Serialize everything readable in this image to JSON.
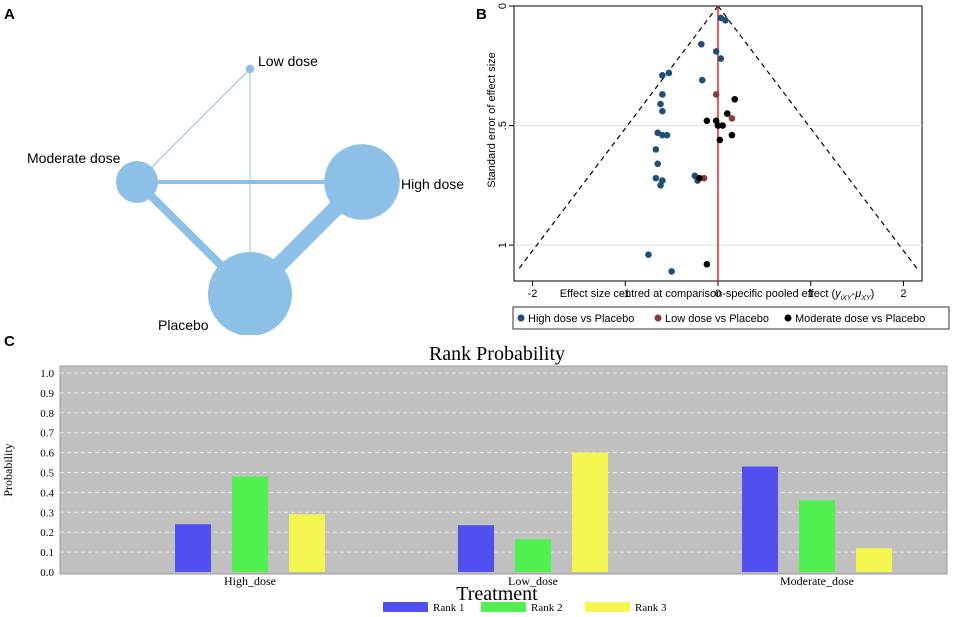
{
  "panels": {
    "a": "A",
    "b": "B",
    "c": "C"
  },
  "chart_data": [
    {
      "type": "network",
      "panel": "A",
      "nodes": [
        {
          "id": "low",
          "label": "Low dose",
          "relative_size": 1
        },
        {
          "id": "moderate",
          "label": "Moderate dose",
          "relative_size": 5
        },
        {
          "id": "high",
          "label": "High dose",
          "relative_size": 9
        },
        {
          "id": "placebo",
          "label": "Placebo",
          "relative_size": 10
        }
      ],
      "edges": [
        {
          "from": "low",
          "to": "moderate",
          "weight": 1
        },
        {
          "from": "low",
          "to": "placebo",
          "weight": 1
        },
        {
          "from": "moderate",
          "to": "high",
          "weight": 4
        },
        {
          "from": "moderate",
          "to": "placebo",
          "weight": 8
        },
        {
          "from": "high",
          "to": "placebo",
          "weight": 16
        }
      ],
      "colors": {
        "node": "#8cc0e6",
        "edge": "#8cc0e6"
      }
    },
    {
      "type": "scatter",
      "panel": "B",
      "title": "",
      "xlabel_main": "Effect size centred at comparison-specific pooled effect (",
      "xlabel_y": "y",
      "xlabel_ysub": "iXY",
      "xlabel_dash": "-",
      "xlabel_mu": "μ",
      "xlabel_musub": "XY",
      "xlabel_close": ")",
      "ylabel": "Standard error of effect size",
      "xlim": [
        -2.2,
        2.2
      ],
      "ylim": [
        1.15,
        0
      ],
      "xticks": [
        "-2",
        "-1",
        "0",
        "1",
        "2"
      ],
      "xtick_values": [
        -2,
        -1,
        0,
        1,
        2
      ],
      "yticks": [
        "0",
        ".5",
        "1"
      ],
      "ytick_values": [
        0,
        0.5,
        1
      ],
      "funnel": {
        "apex": [
          0,
          0
        ],
        "base_left": [
          -2.15,
          1.1
        ],
        "base_right": [
          2.15,
          1.1
        ]
      },
      "reference_line_x": 0,
      "series": [
        {
          "name": "High dose vs Placebo",
          "color": "#1f4e79",
          "points": [
            [
              0.03,
              0.05
            ],
            [
              0.08,
              0.06
            ],
            [
              -0.18,
              0.16
            ],
            [
              -0.02,
              0.19
            ],
            [
              0.03,
              0.22
            ],
            [
              -0.6,
              0.29
            ],
            [
              -0.53,
              0.28
            ],
            [
              -0.17,
              0.31
            ],
            [
              -0.6,
              0.37
            ],
            [
              -0.62,
              0.41
            ],
            [
              -0.6,
              0.44
            ],
            [
              -0.65,
              0.53
            ],
            [
              -0.6,
              0.54
            ],
            [
              -0.55,
              0.54
            ],
            [
              -0.67,
              0.6
            ],
            [
              -0.65,
              0.66
            ],
            [
              -0.67,
              0.72
            ],
            [
              -0.6,
              0.73
            ],
            [
              -0.62,
              0.75
            ],
            [
              -0.25,
              0.71
            ],
            [
              -0.22,
              0.73
            ],
            [
              -0.75,
              1.04
            ],
            [
              -0.5,
              1.11
            ]
          ]
        },
        {
          "name": "Low dose vs Placebo",
          "color": "#8b3a3a",
          "points": [
            [
              -0.02,
              0.37
            ],
            [
              0.15,
              0.47
            ],
            [
              -0.15,
              0.72
            ]
          ]
        },
        {
          "name": "Moderate dose vs Placebo",
          "color": "#000000",
          "points": [
            [
              0.18,
              0.39
            ],
            [
              0.1,
              0.45
            ],
            [
              -0.02,
              0.48
            ],
            [
              -0.12,
              0.48
            ],
            [
              0.05,
              0.5
            ],
            [
              0.0,
              0.5
            ],
            [
              0.15,
              0.54
            ],
            [
              0.02,
              0.56
            ],
            [
              -0.2,
              0.72
            ],
            [
              -0.12,
              1.08
            ]
          ]
        }
      ],
      "legend_position": "bottom"
    },
    {
      "type": "bar",
      "panel": "C",
      "title": "Rank Probability",
      "xlabel": "Treatment",
      "ylabel": "Probability",
      "ylim": [
        0,
        1.05
      ],
      "yticks": [
        "0.0",
        "0.1",
        "0.2",
        "0.3",
        "0.4",
        "0.5",
        "0.6",
        "0.7",
        "0.8",
        "0.9",
        "1.0"
      ],
      "ytick_values": [
        0,
        0.1,
        0.2,
        0.3,
        0.4,
        0.5,
        0.6,
        0.7,
        0.8,
        0.9,
        1.0
      ],
      "categories": [
        "High_dose",
        "Low_dose",
        "Moderate_dose"
      ],
      "series": [
        {
          "name": "Rank 1",
          "color": "#5050f0",
          "values": [
            0.24,
            0.235,
            0.53
          ]
        },
        {
          "name": "Rank 2",
          "color": "#50f050",
          "values": [
            0.48,
            0.165,
            0.36
          ]
        },
        {
          "name": "Rank 3",
          "color": "#f5f550",
          "values": [
            0.29,
            0.6,
            0.12
          ]
        }
      ],
      "colors": {
        "plot_bg": "#c0c0c0"
      },
      "legend_position": "bottom"
    }
  ]
}
